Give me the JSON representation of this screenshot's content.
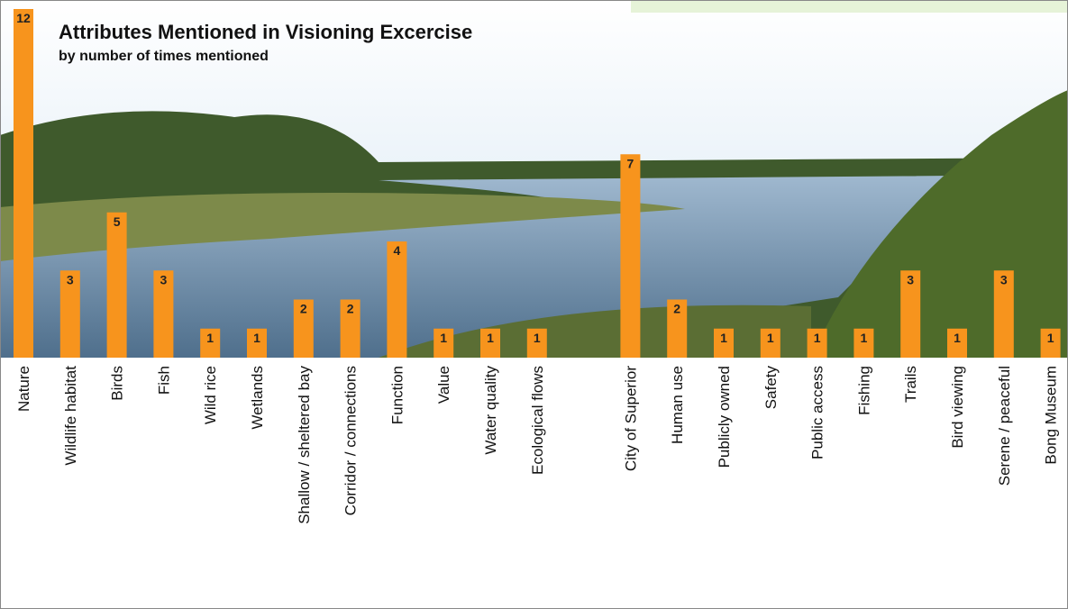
{
  "chart_data": {
    "type": "bar",
    "title": "Attributes Mentioned in Visioning Excercise",
    "subtitle": "by number of times mentioned",
    "categories": [
      "Nature",
      "Wildlife habitat",
      "Birds",
      "Fish",
      "Wild rice",
      "Wetlands",
      "Shallow / sheltered bay",
      "Corridor / connections",
      "Function",
      "Value",
      "Water quality",
      "Ecological flows",
      null,
      "City of Superior",
      "Human use",
      "Publicly owned",
      "Safety",
      "Public access",
      "Fishing",
      "Trails",
      "Bird viewing",
      "Serene / peaceful",
      "Bong Museum"
    ],
    "values": [
      12,
      3,
      5,
      3,
      1,
      1,
      2,
      2,
      4,
      1,
      1,
      1,
      null,
      7,
      2,
      1,
      1,
      1,
      1,
      3,
      1,
      3,
      1
    ],
    "color": "#f7941d",
    "ylim": [
      0,
      12
    ]
  }
}
